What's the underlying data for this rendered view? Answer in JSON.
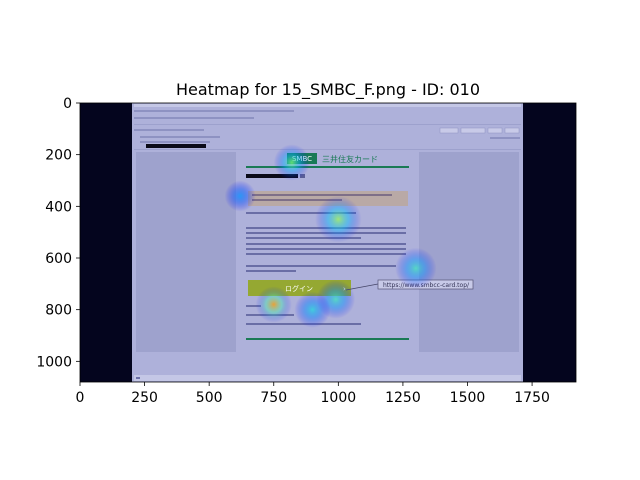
{
  "chart_data": {
    "type": "heatmap",
    "title": "Heatmap for 15_SMBC_F.png - ID: 010",
    "xlabel": "",
    "ylabel": "",
    "xlim": [
      0,
      1920
    ],
    "ylim": [
      1080,
      0
    ],
    "x_ticks": [
      0,
      250,
      500,
      750,
      1000,
      1250,
      1500,
      1750
    ],
    "y_ticks": [
      0,
      200,
      400,
      600,
      800,
      1000
    ],
    "grid": false,
    "colormap": "jet",
    "hotspots": [
      {
        "x": 750,
        "y": 780,
        "intensity": 0.85,
        "radius": 70
      },
      {
        "x": 820,
        "y": 230,
        "intensity": 0.55,
        "radius": 70
      },
      {
        "x": 1000,
        "y": 450,
        "intensity": 0.6,
        "radius": 90
      },
      {
        "x": 1300,
        "y": 640,
        "intensity": 0.45,
        "radius": 80
      },
      {
        "x": 990,
        "y": 760,
        "intensity": 0.45,
        "radius": 75
      },
      {
        "x": 900,
        "y": 800,
        "intensity": 0.4,
        "radius": 70
      },
      {
        "x": 620,
        "y": 360,
        "intensity": 0.25,
        "radius": 60
      }
    ]
  },
  "screenshot": {
    "brand_box": "SMBC",
    "brand_name": "三井住友カード",
    "login_button": "ログイン",
    "url_callout": "https://www.smbcc-card.top/"
  },
  "colors": {
    "background_dark": "#04051e",
    "overlay": "#aeb1da",
    "brand_green": "#1a7a55",
    "login_green": "#95a832"
  }
}
